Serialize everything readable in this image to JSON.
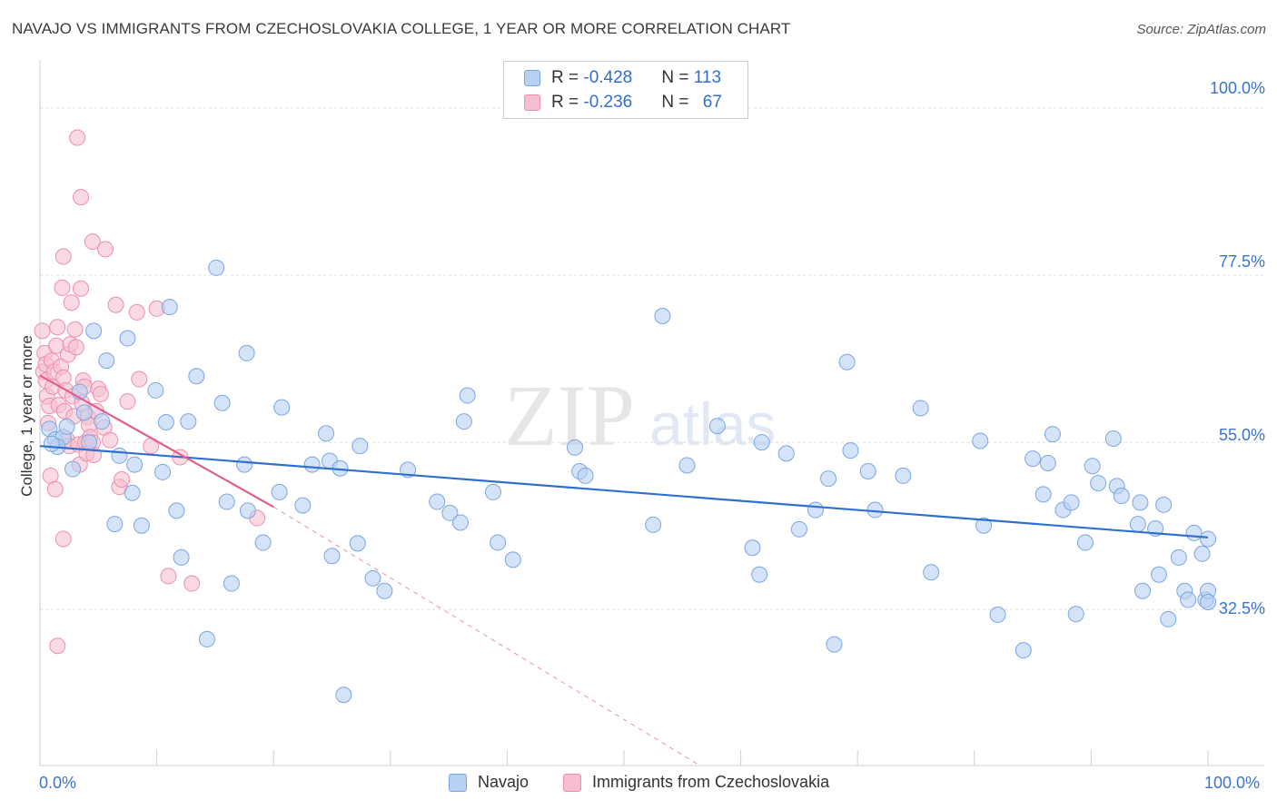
{
  "header": {
    "title": "NAVAJO VS IMMIGRANTS FROM CZECHOSLOVAKIA COLLEGE, 1 YEAR OR MORE CORRELATION CHART",
    "source": "Source: ZipAtlas.com"
  },
  "legend": {
    "rows": [
      {
        "r_label": "R = ",
        "r_value": "-0.428",
        "n_label": "N = ",
        "n_value": "113"
      },
      {
        "r_label": "R = ",
        "r_value": "-0.236",
        "n_label": "N = ",
        "n_value": "67"
      }
    ]
  },
  "watermark": {
    "zip": "ZIP",
    "atlas": "atlas"
  },
  "colors": {
    "navajo_fill": "#b8d1f3",
    "navajo_stroke": "#7aa6e0",
    "navajo_line": "#2f6fcf",
    "czech_fill": "#f6bfd0",
    "czech_stroke": "#ec8fad",
    "czech_line": "#e0608c"
  },
  "chart_data": {
    "type": "scatter",
    "title": "NAVAJO VS IMMIGRANTS FROM CZECHOSLOVAKIA COLLEGE, 1 YEAR OR MORE CORRELATION CHART",
    "xlabel": "",
    "ylabel": "College, 1 year or more",
    "x_tick_labels": [
      "0.0%",
      "100.0%"
    ],
    "y_tick_labels": [
      "100.0%",
      "77.5%",
      "55.0%",
      "32.5%"
    ],
    "y_ticks": [
      100.0,
      77.5,
      55.0,
      32.5
    ],
    "xlim": [
      0,
      100
    ],
    "ylim": [
      11.5,
      105
    ],
    "grid": true,
    "legend_position": "top-center",
    "series": [
      {
        "name": "Navajo",
        "r": -0.428,
        "n": 113,
        "trend": {
          "x": [
            0,
            100
          ],
          "y": [
            54.5,
            42.2
          ]
        },
        "points": [
          [
            0.8,
            56.8
          ],
          [
            1.3,
            55.4
          ],
          [
            2.0,
            55.7
          ],
          [
            2.3,
            57.1
          ],
          [
            1.5,
            54.4
          ],
          [
            1.0,
            54.8
          ],
          [
            2.8,
            51.4
          ],
          [
            3.4,
            61.8
          ],
          [
            3.8,
            59.0
          ],
          [
            4.2,
            55.0
          ],
          [
            4.6,
            70.0
          ],
          [
            5.3,
            57.8
          ],
          [
            5.7,
            66.0
          ],
          [
            6.8,
            53.2
          ],
          [
            7.5,
            69.0
          ],
          [
            7.9,
            48.2
          ],
          [
            6.4,
            44.0
          ],
          [
            8.7,
            43.8
          ],
          [
            8.1,
            52.0
          ],
          [
            9.9,
            62.0
          ],
          [
            10.8,
            57.7
          ],
          [
            10.5,
            51.0
          ],
          [
            11.1,
            73.2
          ],
          [
            12.7,
            57.8
          ],
          [
            11.7,
            45.8
          ],
          [
            12.1,
            39.5
          ],
          [
            13.4,
            63.9
          ],
          [
            14.3,
            28.5
          ],
          [
            15.1,
            78.5
          ],
          [
            16.4,
            36.0
          ],
          [
            15.6,
            60.3
          ],
          [
            16.0,
            47.0
          ],
          [
            17.7,
            67.0
          ],
          [
            17.5,
            52.0
          ],
          [
            17.8,
            45.8
          ],
          [
            19.1,
            41.5
          ],
          [
            20.7,
            59.7
          ],
          [
            20.5,
            48.3
          ],
          [
            22.5,
            46.5
          ],
          [
            23.3,
            52.0
          ],
          [
            24.5,
            56.2
          ],
          [
            24.8,
            52.5
          ],
          [
            25.7,
            51.5
          ],
          [
            25.0,
            39.7
          ],
          [
            26.0,
            21.0
          ],
          [
            27.2,
            41.4
          ],
          [
            27.4,
            54.5
          ],
          [
            28.5,
            36.7
          ],
          [
            29.5,
            35.0
          ],
          [
            31.5,
            51.3
          ],
          [
            34.0,
            47.0
          ],
          [
            35.1,
            45.5
          ],
          [
            36.0,
            44.2
          ],
          [
            36.3,
            57.8
          ],
          [
            36.6,
            61.3
          ],
          [
            38.8,
            48.3
          ],
          [
            39.2,
            41.5
          ],
          [
            40.5,
            39.2
          ],
          [
            45.8,
            54.3
          ],
          [
            46.2,
            51.1
          ],
          [
            46.7,
            50.5
          ],
          [
            52.5,
            43.9
          ],
          [
            53.3,
            72.0
          ],
          [
            55.4,
            51.9
          ],
          [
            58.0,
            57.2
          ],
          [
            61.0,
            40.8
          ],
          [
            61.6,
            37.2
          ],
          [
            61.8,
            55.0
          ],
          [
            63.9,
            53.5
          ],
          [
            65.0,
            43.3
          ],
          [
            66.4,
            45.9
          ],
          [
            67.5,
            50.1
          ],
          [
            68.0,
            27.8
          ],
          [
            69.1,
            65.8
          ],
          [
            69.4,
            53.9
          ],
          [
            70.9,
            51.1
          ],
          [
            71.5,
            45.9
          ],
          [
            73.9,
            50.5
          ],
          [
            75.4,
            59.6
          ],
          [
            76.3,
            37.5
          ],
          [
            80.5,
            55.2
          ],
          [
            80.8,
            43.8
          ],
          [
            82.0,
            31.8
          ],
          [
            84.2,
            27.0
          ],
          [
            85.0,
            52.8
          ],
          [
            85.9,
            48.0
          ],
          [
            86.3,
            52.2
          ],
          [
            86.7,
            56.1
          ],
          [
            87.6,
            45.9
          ],
          [
            88.3,
            46.9
          ],
          [
            88.7,
            31.9
          ],
          [
            89.5,
            41.5
          ],
          [
            90.1,
            51.8
          ],
          [
            90.6,
            49.5
          ],
          [
            91.9,
            55.5
          ],
          [
            92.2,
            49.1
          ],
          [
            92.6,
            47.8
          ],
          [
            94.4,
            35.0
          ],
          [
            94.0,
            44.0
          ],
          [
            94.2,
            46.9
          ],
          [
            95.5,
            43.4
          ],
          [
            95.8,
            37.2
          ],
          [
            96.2,
            46.6
          ],
          [
            96.6,
            31.2
          ],
          [
            97.5,
            39.5
          ],
          [
            98.0,
            35.0
          ],
          [
            98.3,
            33.8
          ],
          [
            98.8,
            42.8
          ],
          [
            99.5,
            40.0
          ],
          [
            99.8,
            33.8
          ],
          [
            100.0,
            35.0
          ],
          [
            100.0,
            42.0
          ],
          [
            100.0,
            33.5
          ]
        ]
      },
      {
        "name": "Immigrants from Czechoslovakia",
        "r": -0.236,
        "n": 67,
        "trend": {
          "x": [
            0,
            20
          ],
          "y": [
            64.0,
            46.3
          ]
        },
        "trend_dashed": {
          "x": [
            20,
            56.5
          ],
          "y": [
            46.3,
            11.5
          ]
        },
        "points": [
          [
            0.2,
            70.0
          ],
          [
            0.3,
            64.5
          ],
          [
            0.4,
            67.0
          ],
          [
            0.5,
            65.5
          ],
          [
            0.5,
            63.3
          ],
          [
            0.6,
            61.2
          ],
          [
            0.7,
            57.6
          ],
          [
            0.8,
            59.9
          ],
          [
            0.9,
            50.5
          ],
          [
            1.0,
            66.0
          ],
          [
            1.1,
            62.5
          ],
          [
            1.2,
            64.5
          ],
          [
            1.3,
            48.7
          ],
          [
            1.4,
            68.0
          ],
          [
            1.5,
            70.5
          ],
          [
            1.6,
            60.0
          ],
          [
            1.8,
            65.2
          ],
          [
            1.9,
            75.8
          ],
          [
            2.0,
            80.0
          ],
          [
            2.0,
            63.7
          ],
          [
            2.1,
            59.2
          ],
          [
            2.2,
            62.0
          ],
          [
            2.3,
            55.4
          ],
          [
            2.4,
            66.8
          ],
          [
            2.5,
            54.5
          ],
          [
            2.6,
            68.2
          ],
          [
            2.7,
            73.8
          ],
          [
            2.8,
            61.2
          ],
          [
            2.9,
            58.5
          ],
          [
            3.0,
            70.2
          ],
          [
            3.1,
            67.8
          ],
          [
            3.2,
            96.0
          ],
          [
            3.3,
            54.7
          ],
          [
            3.4,
            52.0
          ],
          [
            3.5,
            75.7
          ],
          [
            3.6,
            60.3
          ],
          [
            3.7,
            63.3
          ],
          [
            3.8,
            62.5
          ],
          [
            3.9,
            55.0
          ],
          [
            4.0,
            53.5
          ],
          [
            4.1,
            58.4
          ],
          [
            4.2,
            57.3
          ],
          [
            4.3,
            55.7
          ],
          [
            4.5,
            55.0
          ],
          [
            4.6,
            53.3
          ],
          [
            4.8,
            59.2
          ],
          [
            5.0,
            62.2
          ],
          [
            5.2,
            61.5
          ],
          [
            5.5,
            57.0
          ],
          [
            6.0,
            55.3
          ],
          [
            6.8,
            49.0
          ],
          [
            7.5,
            60.5
          ],
          [
            3.5,
            88.0
          ],
          [
            4.5,
            82.0
          ],
          [
            5.6,
            81.0
          ],
          [
            6.5,
            73.5
          ],
          [
            8.3,
            72.5
          ],
          [
            8.5,
            63.5
          ],
          [
            7.0,
            50.0
          ],
          [
            9.5,
            54.5
          ],
          [
            10.0,
            73.0
          ],
          [
            11.0,
            37.0
          ],
          [
            12.0,
            53.0
          ],
          [
            13.0,
            36.0
          ],
          [
            18.6,
            44.8
          ],
          [
            1.5,
            27.6
          ],
          [
            2.0,
            42.0
          ]
        ]
      }
    ]
  }
}
